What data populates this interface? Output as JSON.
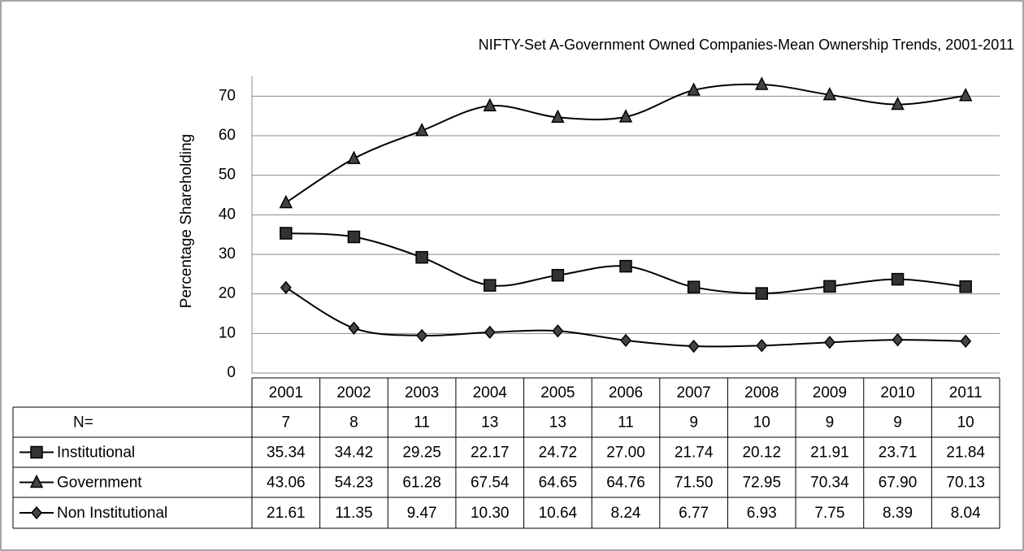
{
  "chart_data": {
    "type": "line",
    "title": "NIFTY-Set A-Government Owned Companies-Mean Ownership Trends, 2001-2011",
    "y_label": "Percentage Shareholding",
    "categories": [
      "2001",
      "2002",
      "2003",
      "2004",
      "2005",
      "2006",
      "2007",
      "2008",
      "2009",
      "2010",
      "2011"
    ],
    "n_label": "N=",
    "n_values": [
      7,
      8,
      11,
      13,
      13,
      11,
      9,
      10,
      9,
      9,
      10
    ],
    "series": [
      {
        "name": "Institutional",
        "color": "#000000",
        "marker": "square",
        "values": [
          35.34,
          34.42,
          29.25,
          22.17,
          24.72,
          27.0,
          21.74,
          20.12,
          21.91,
          23.71,
          21.84
        ],
        "value_labels": [
          "35.34",
          "34.42",
          "29.25",
          "22.17",
          "24.72",
          "27.00",
          "21.74",
          "20.12",
          "21.91",
          "23.71",
          "21.84"
        ]
      },
      {
        "name": "Government",
        "color": "#000000",
        "marker": "triangle",
        "values": [
          43.06,
          54.23,
          61.28,
          67.54,
          64.65,
          64.76,
          71.5,
          72.95,
          70.34,
          67.9,
          70.13
        ],
        "value_labels": [
          "43.06",
          "54.23",
          "61.28",
          "67.54",
          "64.65",
          "64.76",
          "71.50",
          "72.95",
          "70.34",
          "67.90",
          "70.13"
        ]
      },
      {
        "name": "Non Institutional",
        "color": "#000000",
        "marker": "diamond",
        "values": [
          21.61,
          11.35,
          9.47,
          10.3,
          10.64,
          8.24,
          6.77,
          6.93,
          7.75,
          8.39,
          8.04
        ],
        "value_labels": [
          "21.61",
          "11.35",
          "9.47",
          "10.30",
          "10.64",
          "8.24",
          "6.77",
          "6.93",
          "7.75",
          "8.39",
          "8.04"
        ]
      }
    ],
    "ylim": [
      0,
      75
    ],
    "yticks": [
      0,
      10,
      20,
      30,
      40,
      50,
      60,
      70
    ],
    "grid": true,
    "smooth": true
  }
}
